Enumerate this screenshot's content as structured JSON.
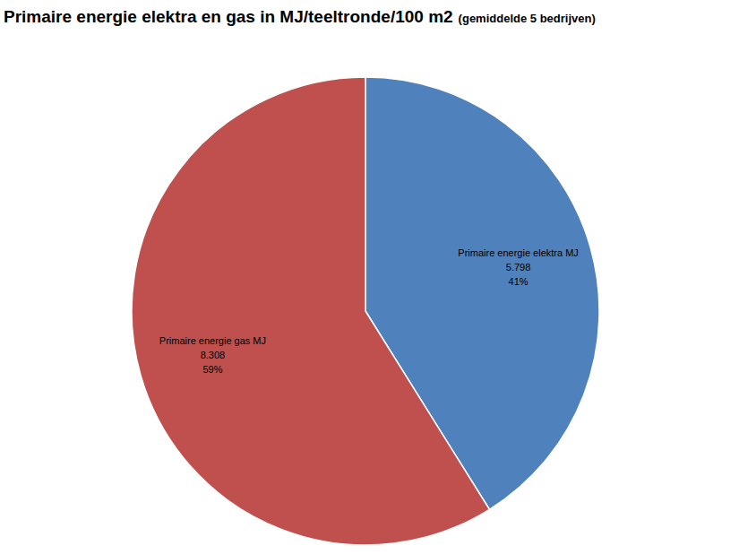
{
  "chart_data": {
    "type": "pie",
    "title": "Primaire energie elektra en gas in MJ/teeltronde/100 m2",
    "subtitle": "(gemiddelde 5 bedrijven)",
    "categories": [
      "Primaire energie elektra MJ",
      "Primaire energie gas MJ"
    ],
    "values": [
      5798,
      8308
    ],
    "value_labels": [
      "5.798",
      "8.308"
    ],
    "percent": [
      41,
      59
    ],
    "percent_labels": [
      "41%",
      "59%"
    ],
    "colors": [
      "#4f81bd",
      "#c0504d"
    ],
    "data_labels": true
  }
}
